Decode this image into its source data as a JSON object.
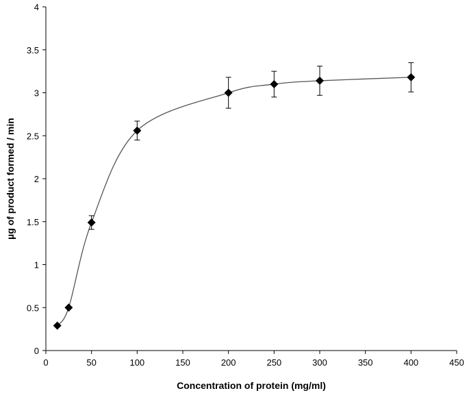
{
  "chart_data": {
    "type": "scatter",
    "title": "",
    "xlabel": "Concentration  of protein (mg/ml)",
    "ylabel": "µg of product formed / min",
    "xlim": [
      0,
      450
    ],
    "ylim": [
      0,
      4
    ],
    "x_ticks": [
      0,
      50,
      100,
      150,
      200,
      250,
      300,
      350,
      400,
      450
    ],
    "y_ticks": [
      "0",
      "0.5",
      "1",
      "1.5",
      "2",
      "2.5",
      "3",
      "3.5",
      "4"
    ],
    "grid": false,
    "legend": "none",
    "marker": "diamond",
    "line": "smooth",
    "series": [
      {
        "points": [
          {
            "x": 12.5,
            "y": 0.29,
            "err": 0
          },
          {
            "x": 25,
            "y": 0.5,
            "err": 0
          },
          {
            "x": 50,
            "y": 1.49,
            "err": 0.08
          },
          {
            "x": 100,
            "y": 2.56,
            "err": 0.11
          },
          {
            "x": 200,
            "y": 3.0,
            "err": 0.18
          },
          {
            "x": 250,
            "y": 3.1,
            "err": 0.15
          },
          {
            "x": 300,
            "y": 3.14,
            "err": 0.17
          },
          {
            "x": 400,
            "y": 3.18,
            "err": 0.17
          }
        ]
      }
    ],
    "colors": {
      "marker": "#000000",
      "line": "#555555",
      "axis": "#000000"
    }
  }
}
